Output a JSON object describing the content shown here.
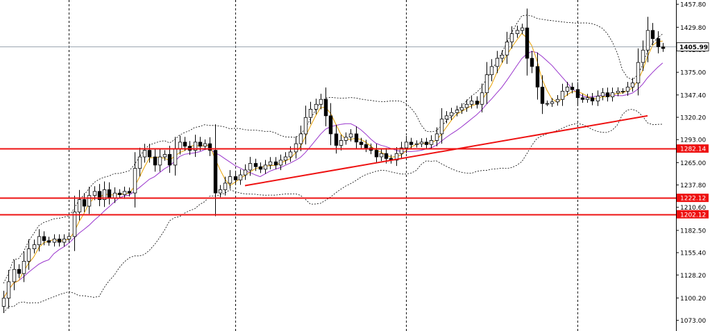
{
  "chart_data": {
    "type": "candlestick",
    "y_axis": {
      "range": [
        1060,
        1463
      ],
      "ticks": [
        "1457.80",
        "1429.80",
        "1402.50",
        "1375.00",
        "1347.40",
        "1320.20",
        "1293.00",
        "1265.00",
        "1237.80",
        "1210.60",
        "1182.50",
        "1155.40",
        "1128.20",
        "1100.20",
        "1073.00"
      ]
    },
    "current_price": {
      "label": "1405.99",
      "value": 1405.99
    },
    "horizontal_levels": [
      {
        "label": "1282.14",
        "value": 1282.14,
        "color": "#ee1111"
      },
      {
        "label": "1222.12",
        "value": 1222.12,
        "color": "#ee1111"
      },
      {
        "label": "1202.12",
        "value": 1202.12,
        "color": "#ee1111"
      }
    ],
    "trendlines": [
      {
        "from": {
          "bar": 48,
          "price": 1237
        },
        "to": {
          "bar": 128,
          "price": 1322
        },
        "color": "#ee1111"
      }
    ],
    "vertical_separators_at_bar": [
      13,
      46,
      80,
      114
    ],
    "indicators": [
      {
        "type": "moving-average",
        "color": "#e8a000"
      },
      {
        "type": "moving-average",
        "color": "#9933cc"
      },
      {
        "type": "bollinger-bands",
        "style": "dotted",
        "color": "#000000"
      }
    ],
    "candle_colors": {
      "bullish_body": "#ffffff",
      "bearish_body": "#000000",
      "outline": "#000000"
    },
    "candles_close": [
      1100,
      1120,
      1135,
      1130,
      1145,
      1160,
      1165,
      1175,
      1170,
      1168,
      1172,
      1168,
      1172,
      1175,
      1205,
      1220,
      1212,
      1225,
      1230,
      1220,
      1232,
      1222,
      1228,
      1226,
      1230,
      1228,
      1258,
      1272,
      1280,
      1272,
      1262,
      1272,
      1275,
      1262,
      1282,
      1290,
      1285,
      1280,
      1290,
      1285,
      1288,
      1280,
      1228,
      1232,
      1240,
      1248,
      1244,
      1250,
      1256,
      1264,
      1260,
      1257,
      1262,
      1266,
      1262,
      1268,
      1272,
      1278,
      1288,
      1300,
      1320,
      1330,
      1336,
      1342,
      1322,
      1300,
      1286,
      1292,
      1296,
      1300,
      1290,
      1287,
      1283,
      1280,
      1272,
      1276,
      1270,
      1268,
      1276,
      1283,
      1290,
      1287,
      1288,
      1290,
      1287,
      1292,
      1300,
      1318,
      1322,
      1326,
      1329,
      1332,
      1336,
      1340,
      1336,
      1350,
      1372,
      1382,
      1392,
      1396,
      1412,
      1422,
      1426,
      1429,
      1392,
      1382,
      1357,
      1337,
      1337,
      1339,
      1342,
      1352,
      1357,
      1354,
      1344,
      1342,
      1344,
      1340,
      1346,
      1350,
      1345,
      1350,
      1352,
      1352,
      1357,
      1362,
      1387,
      1402,
      1426,
      1416,
      1406,
      1404
    ],
    "candles_open": [
      1090,
      1100,
      1120,
      1135,
      1130,
      1145,
      1160,
      1165,
      1175,
      1170,
      1168,
      1172,
      1168,
      1172,
      1175,
      1205,
      1220,
      1212,
      1225,
      1230,
      1220,
      1232,
      1222,
      1228,
      1226,
      1230,
      1228,
      1258,
      1272,
      1280,
      1272,
      1262,
      1272,
      1275,
      1262,
      1282,
      1290,
      1285,
      1280,
      1290,
      1285,
      1288,
      1280,
      1228,
      1232,
      1240,
      1248,
      1244,
      1250,
      1256,
      1264,
      1260,
      1257,
      1262,
      1266,
      1262,
      1268,
      1272,
      1278,
      1288,
      1300,
      1320,
      1330,
      1336,
      1342,
      1322,
      1300,
      1286,
      1292,
      1296,
      1300,
      1290,
      1287,
      1283,
      1280,
      1272,
      1276,
      1270,
      1268,
      1276,
      1283,
      1290,
      1287,
      1288,
      1290,
      1287,
      1292,
      1300,
      1318,
      1322,
      1326,
      1329,
      1332,
      1336,
      1340,
      1336,
      1350,
      1372,
      1382,
      1392,
      1396,
      1412,
      1422,
      1426,
      1429,
      1392,
      1382,
      1357,
      1337,
      1337,
      1339,
      1342,
      1352,
      1357,
      1354,
      1344,
      1342,
      1344,
      1340,
      1346,
      1350,
      1345,
      1350,
      1352,
      1352,
      1357,
      1362,
      1387,
      1402,
      1426,
      1416,
      1406
    ]
  }
}
